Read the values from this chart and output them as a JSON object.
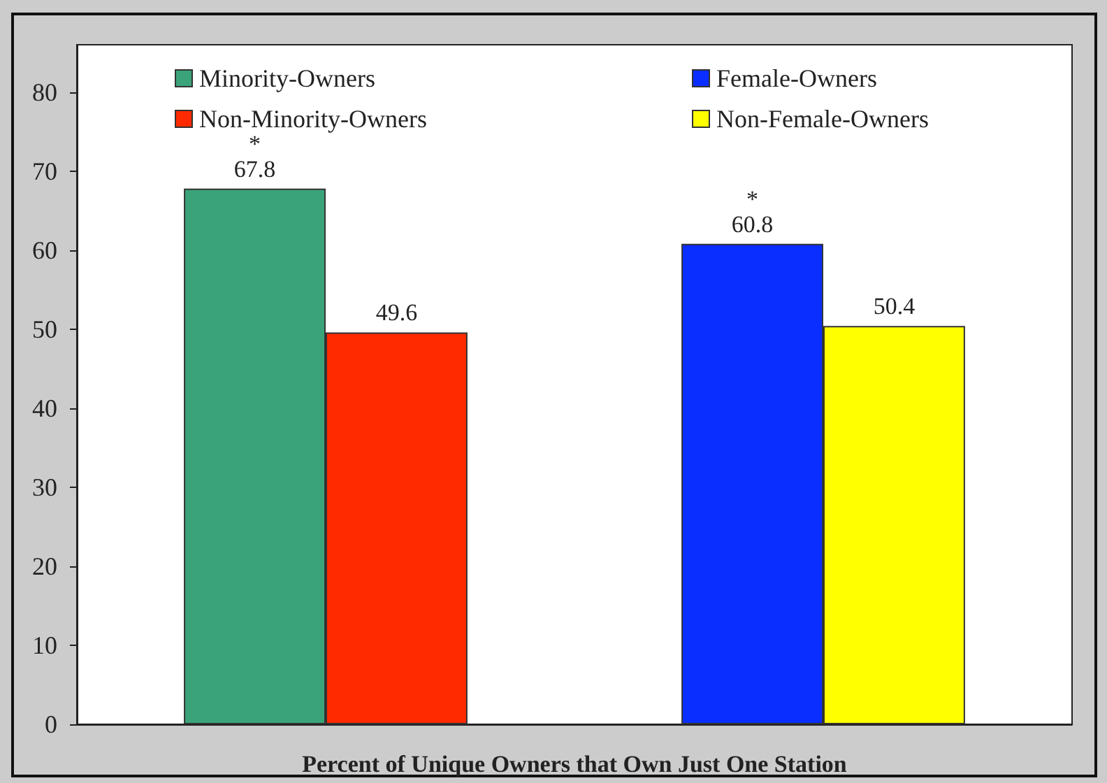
{
  "chart_data": {
    "type": "bar",
    "xlabel": "Percent of Unique Owners that Own Just One Station",
    "categories": [
      null,
      null
    ],
    "series": [
      {
        "name": "Minority-Owners",
        "color": "#3ba37a",
        "values": [
          67.8,
          null
        ],
        "value_labels": [
          "*\n67.8",
          null
        ]
      },
      {
        "name": "Non-Minority-Owners",
        "color": "#ff2a00",
        "values": [
          49.6,
          null
        ],
        "value_labels": [
          "49.6",
          null
        ]
      },
      {
        "name": "Female-Owners",
        "color": "#0a2eff",
        "values": [
          null,
          60.8
        ],
        "value_labels": [
          null,
          "*\n60.8"
        ]
      },
      {
        "name": "Non-Female-Owners",
        "color": "#ffff00",
        "values": [
          null,
          50.4
        ],
        "value_labels": [
          null,
          "50.4"
        ]
      }
    ],
    "ylim": [
      0,
      86
    ],
    "yticks": [
      0,
      10,
      20,
      30,
      40,
      50,
      60,
      70,
      80
    ],
    "grid": false,
    "legend": "top"
  }
}
